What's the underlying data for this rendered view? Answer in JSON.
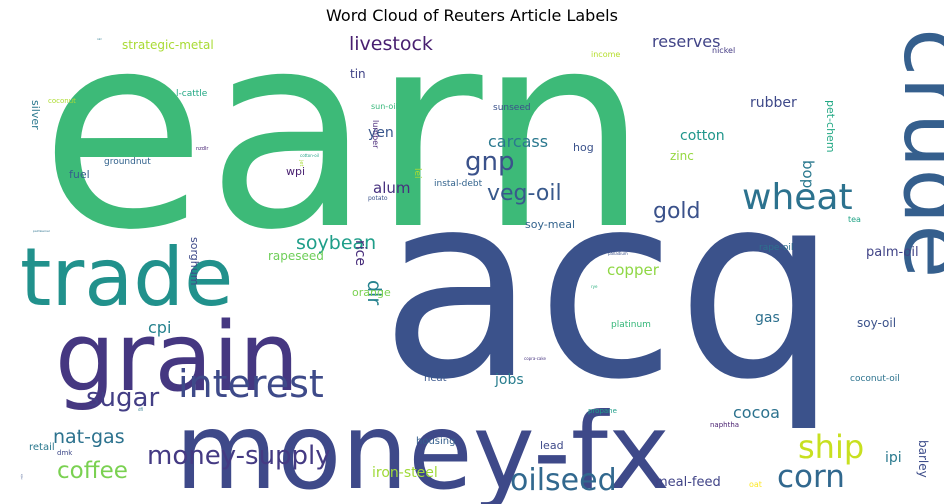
{
  "chart_data": {
    "type": "wordcloud",
    "title": "Word Cloud of Reuters Article Labels",
    "words": [
      {
        "text": "earn",
        "color": "#3dba78"
      },
      {
        "text": "acq",
        "color": "#3b528b"
      },
      {
        "text": "money-fx",
        "color": "#3e4989"
      },
      {
        "text": "crude",
        "color": "#355f8d"
      },
      {
        "text": "grain",
        "color": "#453781"
      },
      {
        "text": "trade",
        "color": "#21918c"
      },
      {
        "text": "interest",
        "color": "#3e4a89"
      },
      {
        "text": "wheat",
        "color": "#2c728e"
      },
      {
        "text": "ship",
        "color": "#c8e020"
      },
      {
        "text": "corn",
        "color": "#31688e"
      },
      {
        "text": "oilseed",
        "color": "#31688e"
      },
      {
        "text": "money-supply",
        "color": "#443a83"
      },
      {
        "text": "sugar",
        "color": "#433e85"
      },
      {
        "text": "gnp",
        "color": "#3b528b"
      },
      {
        "text": "coffee",
        "color": "#7ad151"
      },
      {
        "text": "veg-oil",
        "color": "#38598c"
      },
      {
        "text": "gold",
        "color": "#3b528b"
      },
      {
        "text": "soybean",
        "color": "#1f9e89"
      },
      {
        "text": "livestock",
        "color": "#481f70"
      },
      {
        "text": "nat-gas",
        "color": "#2c728e"
      },
      {
        "text": "dlr",
        "color": "#26828e"
      },
      {
        "text": "reserves",
        "color": "#414487"
      },
      {
        "text": "carcass",
        "color": "#2a788e"
      },
      {
        "text": "cpi",
        "color": "#26828e"
      },
      {
        "text": "cocoa",
        "color": "#2c728e"
      },
      {
        "text": "copper",
        "color": "#8fd744"
      },
      {
        "text": "bop",
        "color": "#2a788e"
      },
      {
        "text": "alum",
        "color": "#46307e"
      },
      {
        "text": "jobs",
        "color": "#287d8e"
      },
      {
        "text": "iron-steel",
        "color": "#a0da39"
      },
      {
        "text": "ipi",
        "color": "#29798e"
      },
      {
        "text": "yen",
        "color": "#39568c"
      },
      {
        "text": "rubber",
        "color": "#3e4989"
      },
      {
        "text": "cotton",
        "color": "#1f968b"
      },
      {
        "text": "gas",
        "color": "#2d708e"
      },
      {
        "text": "rice",
        "color": "#472c7a"
      },
      {
        "text": "palm-oil",
        "color": "#414487"
      },
      {
        "text": "meal-feed",
        "color": "#414487"
      },
      {
        "text": "strategic-metal",
        "color": "#a8db34"
      },
      {
        "text": "barley",
        "color": "#3d4d8a"
      },
      {
        "text": "soy-oil",
        "color": "#3b528b"
      },
      {
        "text": "rapeseed",
        "color": "#6ece58"
      },
      {
        "text": "tin",
        "color": "#414487"
      },
      {
        "text": "zinc",
        "color": "#95d840"
      },
      {
        "text": "orange",
        "color": "#7ad151"
      },
      {
        "text": "hog",
        "color": "#3b528b"
      },
      {
        "text": "fuel",
        "color": "#355f8d"
      },
      {
        "text": "wpi",
        "color": "#481f70"
      },
      {
        "text": "lead",
        "color": "#3e4989"
      },
      {
        "text": "soy-meal",
        "color": "#33638d"
      },
      {
        "text": "pet-chem",
        "color": "#22a884"
      },
      {
        "text": "sorghum",
        "color": "#3e4a89"
      },
      {
        "text": "silver",
        "color": "#2a788e"
      },
      {
        "text": "heat",
        "color": "#39568c"
      },
      {
        "text": "housing",
        "color": "#355f8d"
      },
      {
        "text": "retail",
        "color": "#2a788e"
      },
      {
        "text": "l-cattle",
        "color": "#22a884"
      },
      {
        "text": "platinum",
        "color": "#35b779"
      },
      {
        "text": "lei",
        "color": "#a8db34"
      },
      {
        "text": "coconut-oil",
        "color": "#2c728e"
      },
      {
        "text": "groundnut",
        "color": "#33638d"
      },
      {
        "text": "sunseed",
        "color": "#3b528b"
      },
      {
        "text": "rape-oil",
        "color": "#2d708e"
      },
      {
        "text": "instal-debt",
        "color": "#33638d"
      },
      {
        "text": "lumber",
        "color": "#482878"
      },
      {
        "text": "sun-oil",
        "color": "#35b779"
      },
      {
        "text": "nickel",
        "color": "#443a83"
      },
      {
        "text": "income",
        "color": "#b5de2b"
      },
      {
        "text": "coconut",
        "color": "#addc30"
      },
      {
        "text": "propane",
        "color": "#1f9e89"
      },
      {
        "text": "naphtha",
        "color": "#481f70"
      },
      {
        "text": "tea",
        "color": "#20a386"
      },
      {
        "text": "dmk",
        "color": "#3e4989"
      },
      {
        "text": "oat",
        "color": "#fde725"
      },
      {
        "text": "potato",
        "color": "#3b528b"
      },
      {
        "text": "nzdlr",
        "color": "#482475"
      },
      {
        "text": "jet",
        "color": "#a8db34"
      },
      {
        "text": "cotton-oil",
        "color": "#1fa187"
      },
      {
        "text": "palladium",
        "color": "#3b528b"
      },
      {
        "text": "rye",
        "color": "#29af7f"
      },
      {
        "text": "copra-cake",
        "color": "#46337f"
      },
      {
        "text": "dfl",
        "color": "#2a788e"
      },
      {
        "text": "nkr",
        "color": "#2a788e"
      },
      {
        "text": "palmkernel",
        "color": "#2c728e"
      },
      {
        "text": "cpu",
        "color": "#3b528b"
      }
    ]
  }
}
